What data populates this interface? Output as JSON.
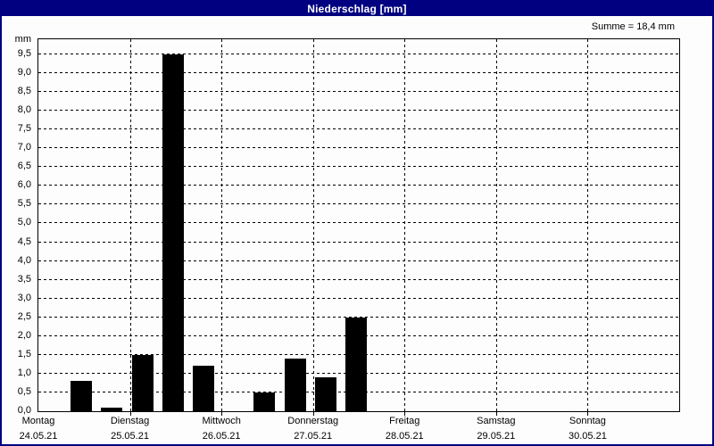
{
  "window": {
    "title": "Niederschlag [mm]"
  },
  "header": {
    "sum_label": "Summe = 18,4 mm"
  },
  "chart_data": {
    "type": "bar",
    "title": "Niederschlag [mm]",
    "ylabel": "mm",
    "unit_label": "mm",
    "sum_text": "Summe = 18,4 mm",
    "sum_value_mm": 18.4,
    "ylim": [
      0,
      9.95
    ],
    "y_tick_step": 0.5,
    "y_ticks": [
      "0,0",
      "0,5",
      "1,0",
      "1,5",
      "2,0",
      "2,5",
      "3,0",
      "3,5",
      "4,0",
      "4,5",
      "5,0",
      "5,5",
      "6,0",
      "6,5",
      "7,0",
      "7,5",
      "8,0",
      "8,5",
      "9,0",
      "9,5"
    ],
    "grid": "dashed",
    "bar_color": "#000000",
    "days": [
      {
        "name": "Montag",
        "date": "24.05.21"
      },
      {
        "name": "Dienstag",
        "date": "25.05.21"
      },
      {
        "name": "Mittwoch",
        "date": "26.05.21"
      },
      {
        "name": "Donnerstag",
        "date": "27.05.21"
      },
      {
        "name": "Freitag",
        "date": "28.05.21"
      },
      {
        "name": "Samstag",
        "date": "29.05.21"
      },
      {
        "name": "Sonntag",
        "date": "30.05.21"
      }
    ],
    "slots_per_day": 3,
    "bars": [
      {
        "day": 0,
        "slot": 1,
        "value": 0.8
      },
      {
        "day": 0,
        "slot": 2,
        "value": 0.1
      },
      {
        "day": 1,
        "slot": 0,
        "value": 1.5
      },
      {
        "day": 1,
        "slot": 1,
        "value": 9.5
      },
      {
        "day": 1,
        "slot": 2,
        "value": 1.2
      },
      {
        "day": 2,
        "slot": 1,
        "value": 0.5
      },
      {
        "day": 2,
        "slot": 2,
        "value": 1.4
      },
      {
        "day": 3,
        "slot": 0,
        "value": 0.9
      },
      {
        "day": 3,
        "slot": 1,
        "value": 2.5
      }
    ]
  },
  "colors": {
    "titlebar": "#000080",
    "titlebar_text": "#ffffff",
    "background": "#fdfdfd",
    "axis": "#000000",
    "bar": "#000000"
  }
}
